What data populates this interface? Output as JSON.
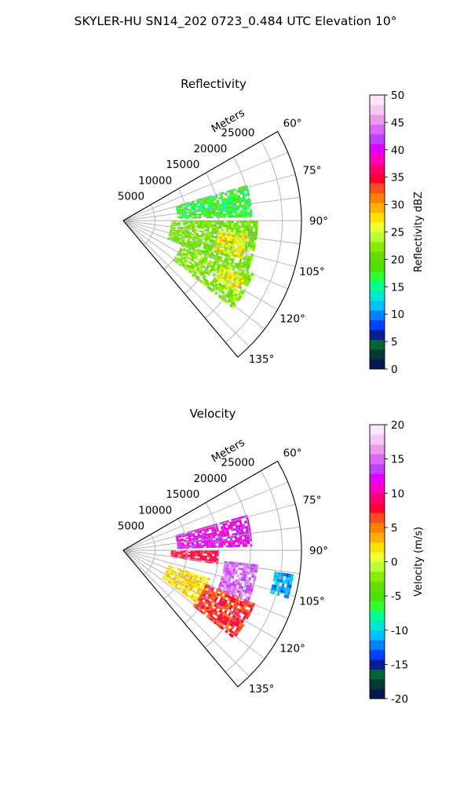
{
  "figure_title": "SKYLER-HU  SN14_202  0723_0.484 UTC Elevation 10°",
  "chart_data": [
    {
      "type": "heatmap",
      "title": "Reflectivity",
      "projection": "polar-sector",
      "range_axis_label": "Meters",
      "range_ticks": [
        5000,
        10000,
        15000,
        20000,
        25000
      ],
      "range_max": 28000,
      "azimuth_ticks": [
        "60°",
        "75°",
        "90°",
        "105°",
        "120°",
        "135°"
      ],
      "azimuth_range_deg": [
        60,
        140
      ],
      "colorbar": {
        "label": "Reflectivity dBZ",
        "min": 0,
        "max": 50,
        "ticks": [
          0,
          5,
          10,
          15,
          20,
          25,
          30,
          35,
          40,
          45,
          50
        ],
        "colors": [
          "#001a4d",
          "#003a33",
          "#006633",
          "#0a1f8f",
          "#0040ff",
          "#0080ff",
          "#00c0ff",
          "#00e6d0",
          "#00ff90",
          "#30ff30",
          "#4ee000",
          "#66dd00",
          "#88ee00",
          "#bbff33",
          "#eeff33",
          "#ffe000",
          "#ffb000",
          "#ff8000",
          "#ff4a20",
          "#ff0033",
          "#ff0070",
          "#ff00c0",
          "#e000ff",
          "#c040ff",
          "#dd66ff",
          "#ee99ee",
          "#f6c8f6",
          "#fbe6fb"
        ]
      },
      "echo_summary": [
        {
          "az": [
            74,
            88
          ],
          "range_m": [
            8500,
            20000
          ],
          "dbz": 17
        },
        {
          "az": [
            90,
            112
          ],
          "range_m": [
            7500,
            21000
          ],
          "dbz": 21
        },
        {
          "az": [
            96,
            108
          ],
          "range_m": [
            15000,
            19500
          ],
          "dbz": 27
        },
        {
          "az": [
            112,
            128
          ],
          "range_m": [
            10000,
            22000
          ],
          "dbz": 22
        },
        {
          "az": [
            115,
            122
          ],
          "range_m": [
            17000,
            21000
          ],
          "dbz": 27
        }
      ]
    },
    {
      "type": "heatmap",
      "title": "Velocity",
      "projection": "polar-sector",
      "range_axis_label": "Meters",
      "range_ticks": [
        5000,
        10000,
        15000,
        20000,
        25000
      ],
      "range_max": 28000,
      "azimuth_ticks": [
        "60°",
        "75°",
        "90°",
        "105°",
        "120°",
        "135°"
      ],
      "azimuth_range_deg": [
        60,
        140
      ],
      "colorbar": {
        "label": "Velocity (m/s)",
        "min": -20,
        "max": 20,
        "ticks": [
          -20,
          -15,
          -10,
          -5,
          0,
          5,
          10,
          15,
          20
        ],
        "colors": [
          "#001a4d",
          "#003a33",
          "#006633",
          "#0a1f8f",
          "#0040ff",
          "#0080ff",
          "#00c0ff",
          "#00e6d0",
          "#00ff90",
          "#30ff30",
          "#4ee000",
          "#66dd00",
          "#88ee00",
          "#bbff33",
          "#eeff33",
          "#ffe000",
          "#ffb000",
          "#ff8000",
          "#ff4a20",
          "#ff0033",
          "#ff0070",
          "#ff00c0",
          "#e000ff",
          "#c040ff",
          "#dd66ff",
          "#ee99ee",
          "#f6c8f6",
          "#fbe6fb"
        ]
      },
      "echo_summary": [
        {
          "az": [
            74,
            88
          ],
          "range_m": [
            8500,
            20000
          ],
          "vel": 12
        },
        {
          "az": [
            90,
            98
          ],
          "range_m": [
            7500,
            15000
          ],
          "vel": 8
        },
        {
          "az": [
            96,
            112
          ],
          "range_m": [
            16000,
            21000
          ],
          "vel": 15
        },
        {
          "az": [
            98,
            106
          ],
          "range_m": [
            24000,
            27000
          ],
          "vel": -11
        },
        {
          "az": [
            108,
            126
          ],
          "range_m": [
            7500,
            14000
          ],
          "vel": 2
        },
        {
          "az": [
            112,
            128
          ],
          "range_m": [
            14000,
            22000
          ],
          "vel": 7
        }
      ]
    }
  ]
}
